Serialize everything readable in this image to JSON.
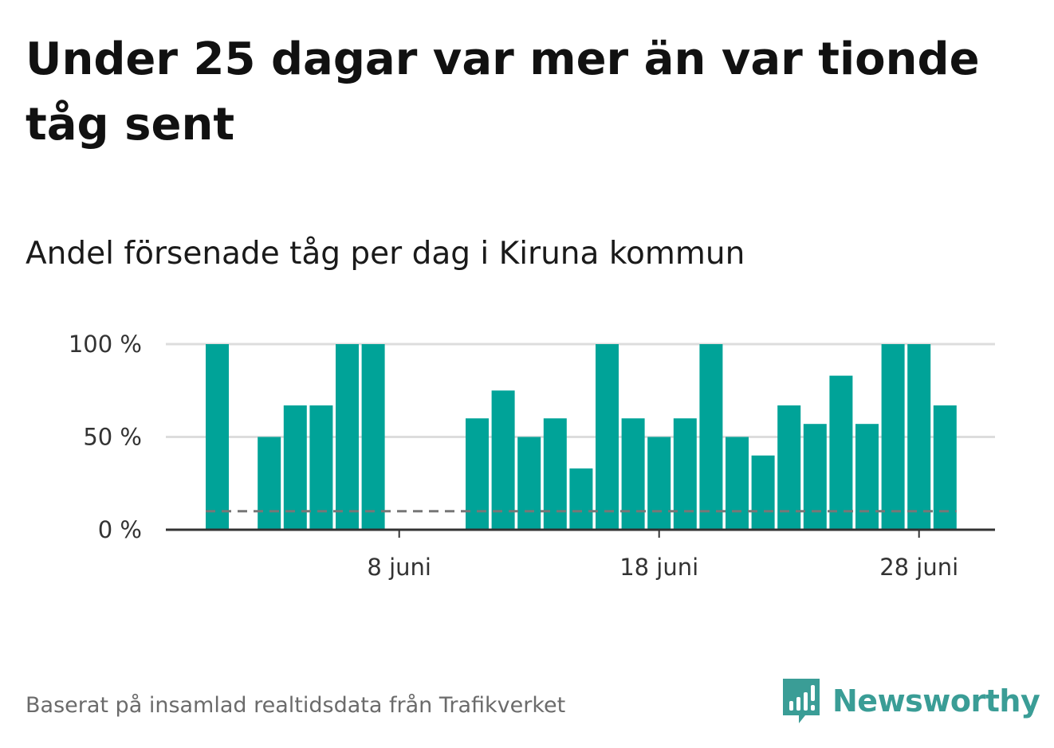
{
  "title": "Under 25 dagar var mer än var tionde tåg sent",
  "subtitle": "Andel försenade tåg per dag i Kiruna kommun",
  "footer": "Baserat på insamlad realtidsdata från Trafikverket",
  "brand": {
    "name": "Newsworthy",
    "color": "#3a9d96",
    "icon": "newsworthy-logo-icon"
  },
  "colors": {
    "bar": "#00a398",
    "grid": "#dddddd",
    "axis": "#333333",
    "reference_line": "#777777"
  },
  "chart_data": {
    "type": "bar",
    "x": [
      "2024-06-01",
      "2024-06-02",
      "2024-06-03",
      "2024-06-04",
      "2024-06-05",
      "2024-06-06",
      "2024-06-07",
      "2024-06-08",
      "2024-06-09",
      "2024-06-10",
      "2024-06-11",
      "2024-06-12",
      "2024-06-13",
      "2024-06-14",
      "2024-06-15",
      "2024-06-16",
      "2024-06-17",
      "2024-06-18",
      "2024-06-19",
      "2024-06-20",
      "2024-06-21",
      "2024-06-22",
      "2024-06-23",
      "2024-06-24",
      "2024-06-25",
      "2024-06-26",
      "2024-06-27",
      "2024-06-28",
      "2024-06-29"
    ],
    "values": [
      100,
      null,
      50,
      67,
      67,
      100,
      100,
      null,
      null,
      null,
      60,
      75,
      50,
      60,
      33,
      100,
      60,
      50,
      60,
      100,
      50,
      40,
      67,
      57,
      83,
      57,
      100,
      100,
      67
    ],
    "reference_line": 10,
    "yticks": [
      0,
      50,
      100
    ],
    "ytick_labels": [
      "0 %",
      "50 %",
      "100 %"
    ],
    "xticks": [
      "2024-06-08",
      "2024-06-18",
      "2024-06-28"
    ],
    "xtick_labels": [
      "8 juni",
      "18 juni",
      "28 juni"
    ],
    "ylim": [
      0,
      100
    ],
    "xlabel": "",
    "ylabel": "",
    "grid": "horizontal",
    "legend": "none"
  }
}
